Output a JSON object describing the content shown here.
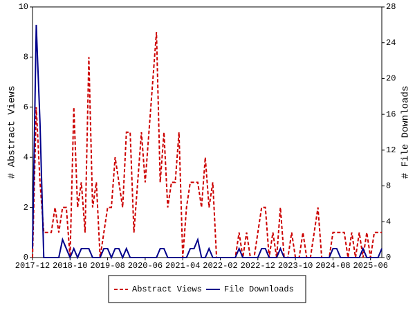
{
  "chart_data": {
    "type": "line",
    "x": [
      "2017-12",
      "2018-01",
      "2018-02",
      "2018-03",
      "2018-04",
      "2018-05",
      "2018-06",
      "2018-07",
      "2018-08",
      "2018-09",
      "2018-10",
      "2018-11",
      "2018-12",
      "2019-01",
      "2019-02",
      "2019-03",
      "2019-04",
      "2019-05",
      "2019-06",
      "2019-07",
      "2019-08",
      "2019-09",
      "2019-10",
      "2019-11",
      "2019-12",
      "2020-01",
      "2020-02",
      "2020-03",
      "2020-04",
      "2020-05",
      "2020-06",
      "2020-07",
      "2020-08",
      "2020-09",
      "2020-10",
      "2020-11",
      "2020-12",
      "2021-01",
      "2021-02",
      "2021-03",
      "2021-04",
      "2021-05",
      "2021-06",
      "2021-07",
      "2021-08",
      "2021-09",
      "2021-10",
      "2021-11",
      "2021-12",
      "2022-01",
      "2022-02",
      "2022-03",
      "2022-04",
      "2022-05",
      "2022-06",
      "2022-07",
      "2022-08",
      "2022-09",
      "2022-10",
      "2022-11",
      "2022-12",
      "2023-01",
      "2023-02",
      "2023-03",
      "2023-04",
      "2023-05",
      "2023-06",
      "2023-07",
      "2023-08",
      "2023-09",
      "2023-10",
      "2023-11",
      "2023-12",
      "2024-01",
      "2024-02",
      "2024-03",
      "2024-04",
      "2024-05",
      "2024-06",
      "2024-07",
      "2024-08",
      "2024-09",
      "2024-10",
      "2024-11",
      "2024-12",
      "2025-01",
      "2025-02",
      "2025-03",
      "2025-04",
      "2025-05",
      "2025-06",
      "2025-07",
      "2025-08",
      "2025-09"
    ],
    "xticks": [
      "2017-12",
      "2018-10",
      "2019-08",
      "2020-06",
      "2021-04",
      "2022-02",
      "2022-12",
      "2023-10",
      "2024-08",
      "2025-06"
    ],
    "series": [
      {
        "name": "Abstract Views",
        "color": "#cc0000",
        "dash": true,
        "axis": "y",
        "values": [
          0,
          6,
          3,
          1,
          1,
          1,
          2,
          1,
          2,
          2,
          0,
          6,
          2,
          3,
          1,
          8,
          2,
          3,
          0,
          1,
          2,
          2,
          4,
          3,
          2,
          5,
          5,
          1,
          3,
          5,
          3,
          5,
          7,
          9,
          3,
          5,
          2,
          3,
          3,
          5,
          0,
          2,
          3,
          3,
          3,
          2,
          4,
          2,
          3,
          0,
          0,
          0,
          0,
          0,
          0,
          1,
          0,
          1,
          0,
          0,
          1,
          2,
          2,
          0,
          1,
          0,
          2,
          0,
          0,
          1,
          0,
          0,
          1,
          0,
          0,
          1,
          2,
          0,
          0,
          0,
          1,
          1,
          1,
          1,
          0,
          1,
          0,
          1,
          0,
          1,
          0,
          1,
          1,
          1
        ]
      },
      {
        "name": "File Downloads",
        "color": "#00008b",
        "dash": false,
        "axis": "y2",
        "values": [
          1,
          26,
          15,
          0,
          0,
          0,
          0,
          0,
          2,
          1,
          0,
          1,
          0,
          1,
          1,
          1,
          0,
          0,
          0,
          1,
          1,
          0,
          1,
          1,
          0,
          1,
          0,
          0,
          0,
          0,
          0,
          0,
          0,
          0,
          1,
          1,
          0,
          0,
          0,
          0,
          0,
          0,
          1,
          1,
          2,
          0,
          0,
          1,
          0,
          0,
          0,
          0,
          0,
          0,
          0,
          1,
          0,
          0,
          0,
          0,
          0,
          1,
          1,
          0,
          0,
          0,
          1,
          0,
          0,
          0,
          0,
          0,
          0,
          0,
          0,
          0,
          0,
          0,
          0,
          0,
          1,
          1,
          0,
          0,
          0,
          0,
          0,
          0,
          1,
          0,
          0,
          0,
          0,
          1
        ]
      }
    ],
    "ylabel": "# Abstract Views",
    "y2label": "# File Downloads",
    "ylim": [
      0,
      10
    ],
    "yticks": [
      0,
      2,
      4,
      6,
      8,
      10
    ],
    "y2lim": [
      0,
      28
    ],
    "y2ticks": [
      0,
      4,
      8,
      12,
      16,
      20,
      24,
      28
    ]
  }
}
